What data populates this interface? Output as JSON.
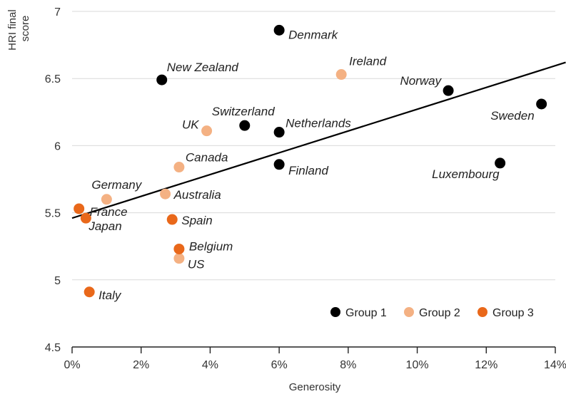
{
  "chart_data": {
    "type": "scatter",
    "title": "",
    "xlabel": "Generosity",
    "ylabel_lines": [
      "HRI final",
      "score"
    ],
    "xlim": [
      0,
      14
    ],
    "ylim": [
      4.5,
      7
    ],
    "x_ticks": [
      0,
      2,
      4,
      6,
      8,
      10,
      12,
      14
    ],
    "x_tick_labels": [
      "0%",
      "2%",
      "4%",
      "6%",
      "8%",
      "10%",
      "12%",
      "14%"
    ],
    "y_ticks": [
      4.5,
      5,
      5.5,
      6,
      6.5,
      7
    ],
    "y_tick_labels": [
      "4.5",
      "5",
      "5.5",
      "6",
      "6.5",
      "7"
    ],
    "grid": "horizontal",
    "legend_position": "bottom-right",
    "series": [
      {
        "name": "Group 1",
        "color": "#000000",
        "points": [
          {
            "label": "Denmark",
            "x": 6.0,
            "y": 6.86
          },
          {
            "label": "New Zealand",
            "x": 2.6,
            "y": 6.49
          },
          {
            "label": "Norway",
            "x": 10.9,
            "y": 6.41
          },
          {
            "label": "Sweden",
            "x": 13.6,
            "y": 6.31
          },
          {
            "label": "Switzerland",
            "x": 5.0,
            "y": 6.15
          },
          {
            "label": "Netherlands",
            "x": 6.0,
            "y": 6.1
          },
          {
            "label": "Finland",
            "x": 6.0,
            "y": 5.86
          },
          {
            "label": "Luxembourg",
            "x": 12.4,
            "y": 5.87
          }
        ]
      },
      {
        "name": "Group 2",
        "color": "#f4b183",
        "points": [
          {
            "label": "Ireland",
            "x": 7.8,
            "y": 6.53
          },
          {
            "label": "UK",
            "x": 3.9,
            "y": 6.11
          },
          {
            "label": "Canada",
            "x": 3.1,
            "y": 5.84
          },
          {
            "label": "Germany",
            "x": 1.0,
            "y": 5.6
          },
          {
            "label": "Australia",
            "x": 2.7,
            "y": 5.64
          },
          {
            "label": "US",
            "x": 3.1,
            "y": 5.16
          }
        ]
      },
      {
        "name": "Group 3",
        "color": "#e9681a",
        "points": [
          {
            "label": "France",
            "x": 0.2,
            "y": 5.53
          },
          {
            "label": "Japan",
            "x": 0.4,
            "y": 5.46
          },
          {
            "label": "Spain",
            "x": 2.9,
            "y": 5.45
          },
          {
            "label": "Belgium",
            "x": 3.1,
            "y": 5.23
          },
          {
            "label": "Italy",
            "x": 0.5,
            "y": 4.91
          }
        ]
      }
    ],
    "trendline": {
      "x": [
        0,
        14.3
      ],
      "y": [
        5.46,
        6.62
      ],
      "color": "#000000"
    }
  }
}
